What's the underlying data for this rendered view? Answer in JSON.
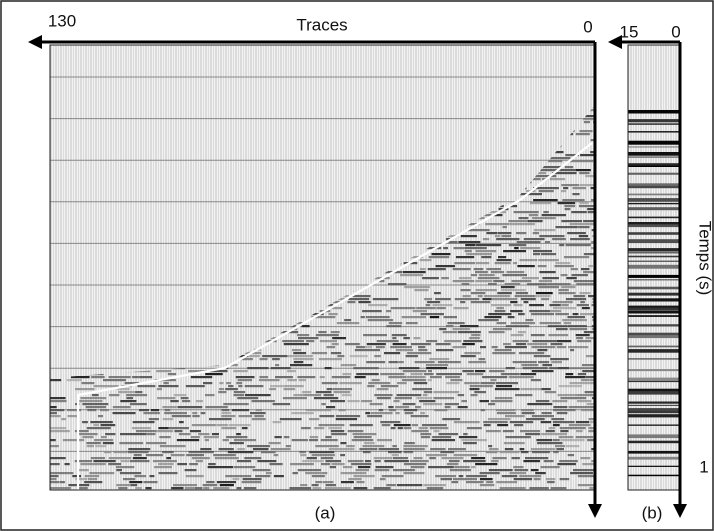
{
  "panel_a": {
    "x_start": "130",
    "x_title": "Traces",
    "x_end": "0",
    "caption": "(a)"
  },
  "panel_b": {
    "x_start": "15",
    "x_end": "0",
    "caption": "(b)"
  },
  "time_axis": {
    "title": "Temps (s)",
    "end_label": "1"
  }
}
